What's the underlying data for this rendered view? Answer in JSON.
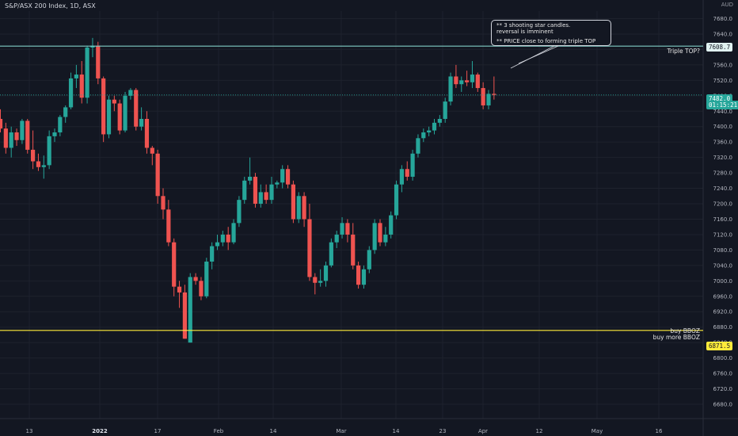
{
  "header": {
    "title": "S&P/ASX 200 Index, 1D, ASX",
    "currency": "AUD"
  },
  "annotation": {
    "line1": "** 3 shooting star candles.",
    "line2": "reversal is imminent",
    "line3": "** PRICE close to forming triple TOP"
  },
  "labels": {
    "triple_top": "Triple TOP?",
    "buy1": "buy BBOZ",
    "buy2": "buy more BBOZ"
  },
  "price_tags": {
    "resistance": "7608.7",
    "current": "7482.0",
    "countdown": "01:15:21",
    "support": "6871.5"
  },
  "colors": {
    "background": "#131722",
    "up": "#26a69a",
    "down": "#ef5350",
    "resistance_line": "#80cbc4",
    "support_line": "#ffeb3b",
    "grid": "#1e222d",
    "text": "#d1d4dc"
  },
  "chart_data": {
    "type": "candlestick",
    "title": "S&P/ASX 200 Index, 1D, ASX",
    "ylabel": "AUD",
    "ylim": [
      6660,
      7700
    ],
    "y_ticks": [
      6680,
      6720,
      6760,
      6800,
      6840,
      6880,
      6920,
      6960,
      7000,
      7040,
      7080,
      7120,
      7160,
      7200,
      7240,
      7280,
      7320,
      7360,
      7400,
      7440,
      7480,
      7520,
      7560,
      7600,
      7640,
      7680
    ],
    "x_ticks": [
      "13",
      "2022",
      "17",
      "Feb",
      "14",
      "Mar",
      "14",
      "23",
      "Apr",
      "12",
      "May",
      "16"
    ],
    "horizontal_levels": [
      {
        "value": 7608.7,
        "label": "Triple TOP?"
      },
      {
        "value": 6871.5,
        "label": "buy BBOZ / buy more BBOZ"
      }
    ],
    "last_price": 7482.0,
    "candles": [
      {
        "o": 7420,
        "h": 7445,
        "l": 7385,
        "c": 7395
      },
      {
        "o": 7395,
        "h": 7410,
        "l": 7330,
        "c": 7345
      },
      {
        "o": 7345,
        "h": 7400,
        "l": 7320,
        "c": 7385
      },
      {
        "o": 7385,
        "h": 7395,
        "l": 7350,
        "c": 7365
      },
      {
        "o": 7365,
        "h": 7420,
        "l": 7355,
        "c": 7415
      },
      {
        "o": 7415,
        "h": 7420,
        "l": 7330,
        "c": 7340
      },
      {
        "o": 7340,
        "h": 7390,
        "l": 7290,
        "c": 7310
      },
      {
        "o": 7310,
        "h": 7330,
        "l": 7285,
        "c": 7295
      },
      {
        "o": 7295,
        "h": 7325,
        "l": 7265,
        "c": 7300
      },
      {
        "o": 7300,
        "h": 7390,
        "l": 7290,
        "c": 7375
      },
      {
        "o": 7375,
        "h": 7395,
        "l": 7360,
        "c": 7385
      },
      {
        "o": 7385,
        "h": 7430,
        "l": 7375,
        "c": 7425
      },
      {
        "o": 7425,
        "h": 7455,
        "l": 7410,
        "c": 7450
      },
      {
        "o": 7450,
        "h": 7540,
        "l": 7445,
        "c": 7525
      },
      {
        "o": 7525,
        "h": 7560,
        "l": 7500,
        "c": 7535
      },
      {
        "o": 7535,
        "h": 7570,
        "l": 7460,
        "c": 7475
      },
      {
        "o": 7475,
        "h": 7610,
        "l": 7460,
        "c": 7605
      },
      {
        "o": 7605,
        "h": 7630,
        "l": 7580,
        "c": 7610
      },
      {
        "o": 7610,
        "h": 7620,
        "l": 7510,
        "c": 7525
      },
      {
        "o": 7525,
        "h": 7530,
        "l": 7360,
        "c": 7380
      },
      {
        "o": 7380,
        "h": 7480,
        "l": 7370,
        "c": 7470
      },
      {
        "o": 7470,
        "h": 7480,
        "l": 7440,
        "c": 7460
      },
      {
        "o": 7460,
        "h": 7470,
        "l": 7380,
        "c": 7390
      },
      {
        "o": 7390,
        "h": 7490,
        "l": 7385,
        "c": 7480
      },
      {
        "o": 7480,
        "h": 7500,
        "l": 7470,
        "c": 7495
      },
      {
        "o": 7495,
        "h": 7500,
        "l": 7390,
        "c": 7400
      },
      {
        "o": 7400,
        "h": 7450,
        "l": 7390,
        "c": 7420
      },
      {
        "o": 7420,
        "h": 7440,
        "l": 7330,
        "c": 7345
      },
      {
        "o": 7345,
        "h": 7350,
        "l": 7300,
        "c": 7330
      },
      {
        "o": 7330,
        "h": 7340,
        "l": 7200,
        "c": 7220
      },
      {
        "o": 7220,
        "h": 7240,
        "l": 7160,
        "c": 7185
      },
      {
        "o": 7185,
        "h": 7210,
        "l": 7090,
        "c": 7100
      },
      {
        "o": 7100,
        "h": 7110,
        "l": 6960,
        "c": 6985
      },
      {
        "o": 6985,
        "h": 7000,
        "l": 6930,
        "c": 6970
      },
      {
        "o": 6970,
        "h": 6990,
        "l": 6850,
        "c": 6850
      },
      {
        "o": 6840,
        "h": 7020,
        "l": 6840,
        "c": 7010
      },
      {
        "o": 7010,
        "h": 7020,
        "l": 6990,
        "c": 7000
      },
      {
        "o": 7000,
        "h": 7010,
        "l": 6950,
        "c": 6960
      },
      {
        "o": 6960,
        "h": 7060,
        "l": 6955,
        "c": 7050
      },
      {
        "o": 7050,
        "h": 7100,
        "l": 7030,
        "c": 7090
      },
      {
        "o": 7090,
        "h": 7120,
        "l": 7080,
        "c": 7100
      },
      {
        "o": 7100,
        "h": 7130,
        "l": 7090,
        "c": 7120
      },
      {
        "o": 7120,
        "h": 7140,
        "l": 7080,
        "c": 7100
      },
      {
        "o": 7100,
        "h": 7160,
        "l": 7095,
        "c": 7150
      },
      {
        "o": 7150,
        "h": 7220,
        "l": 7140,
        "c": 7210
      },
      {
        "o": 7210,
        "h": 7270,
        "l": 7200,
        "c": 7260
      },
      {
        "o": 7260,
        "h": 7320,
        "l": 7250,
        "c": 7270
      },
      {
        "o": 7270,
        "h": 7280,
        "l": 7190,
        "c": 7200
      },
      {
        "o": 7200,
        "h": 7250,
        "l": 7190,
        "c": 7230
      },
      {
        "o": 7230,
        "h": 7250,
        "l": 7200,
        "c": 7210
      },
      {
        "o": 7210,
        "h": 7270,
        "l": 7200,
        "c": 7250
      },
      {
        "o": 7250,
        "h": 7260,
        "l": 7240,
        "c": 7255
      },
      {
        "o": 7255,
        "h": 7300,
        "l": 7240,
        "c": 7290
      },
      {
        "o": 7290,
        "h": 7300,
        "l": 7240,
        "c": 7250
      },
      {
        "o": 7250,
        "h": 7260,
        "l": 7150,
        "c": 7160
      },
      {
        "o": 7160,
        "h": 7230,
        "l": 7150,
        "c": 7220
      },
      {
        "o": 7220,
        "h": 7230,
        "l": 7140,
        "c": 7160
      },
      {
        "o": 7160,
        "h": 7200,
        "l": 7000,
        "c": 7010
      },
      {
        "o": 7010,
        "h": 7020,
        "l": 6965,
        "c": 6995
      },
      {
        "o": 6995,
        "h": 7030,
        "l": 6985,
        "c": 7000
      },
      {
        "o": 7000,
        "h": 7050,
        "l": 6985,
        "c": 7040
      },
      {
        "o": 7040,
        "h": 7110,
        "l": 7035,
        "c": 7100
      },
      {
        "o": 7100,
        "h": 7130,
        "l": 7085,
        "c": 7120
      },
      {
        "o": 7120,
        "h": 7165,
        "l": 7110,
        "c": 7150
      },
      {
        "o": 7150,
        "h": 7160,
        "l": 7100,
        "c": 7120
      },
      {
        "o": 7120,
        "h": 7150,
        "l": 7030,
        "c": 7040
      },
      {
        "o": 7040,
        "h": 7050,
        "l": 6980,
        "c": 6990
      },
      {
        "o": 6990,
        "h": 7040,
        "l": 6980,
        "c": 7030
      },
      {
        "o": 7030,
        "h": 7090,
        "l": 7020,
        "c": 7080
      },
      {
        "o": 7080,
        "h": 7160,
        "l": 7070,
        "c": 7150
      },
      {
        "o": 7150,
        "h": 7160,
        "l": 7090,
        "c": 7100
      },
      {
        "o": 7100,
        "h": 7140,
        "l": 7090,
        "c": 7120
      },
      {
        "o": 7120,
        "h": 7180,
        "l": 7110,
        "c": 7170
      },
      {
        "o": 7170,
        "h": 7260,
        "l": 7160,
        "c": 7250
      },
      {
        "o": 7250,
        "h": 7300,
        "l": 7230,
        "c": 7290
      },
      {
        "o": 7290,
        "h": 7310,
        "l": 7260,
        "c": 7270
      },
      {
        "o": 7270,
        "h": 7340,
        "l": 7260,
        "c": 7330
      },
      {
        "o": 7330,
        "h": 7380,
        "l": 7320,
        "c": 7370
      },
      {
        "o": 7370,
        "h": 7395,
        "l": 7360,
        "c": 7385
      },
      {
        "o": 7385,
        "h": 7400,
        "l": 7375,
        "c": 7390
      },
      {
        "o": 7390,
        "h": 7420,
        "l": 7380,
        "c": 7410
      },
      {
        "o": 7410,
        "h": 7430,
        "l": 7400,
        "c": 7420
      },
      {
        "o": 7420,
        "h": 7475,
        "l": 7410,
        "c": 7465
      },
      {
        "o": 7465,
        "h": 7540,
        "l": 7455,
        "c": 7530
      },
      {
        "o": 7530,
        "h": 7560,
        "l": 7500,
        "c": 7510
      },
      {
        "o": 7510,
        "h": 7530,
        "l": 7490,
        "c": 7520
      },
      {
        "o": 7520,
        "h": 7545,
        "l": 7505,
        "c": 7515
      },
      {
        "o": 7515,
        "h": 7570,
        "l": 7500,
        "c": 7535
      },
      {
        "o": 7535,
        "h": 7540,
        "l": 7490,
        "c": 7500
      },
      {
        "o": 7500,
        "h": 7515,
        "l": 7445,
        "c": 7455
      },
      {
        "o": 7455,
        "h": 7495,
        "l": 7445,
        "c": 7485
      },
      {
        "o": 7485,
        "h": 7530,
        "l": 7470,
        "c": 7482
      }
    ]
  }
}
